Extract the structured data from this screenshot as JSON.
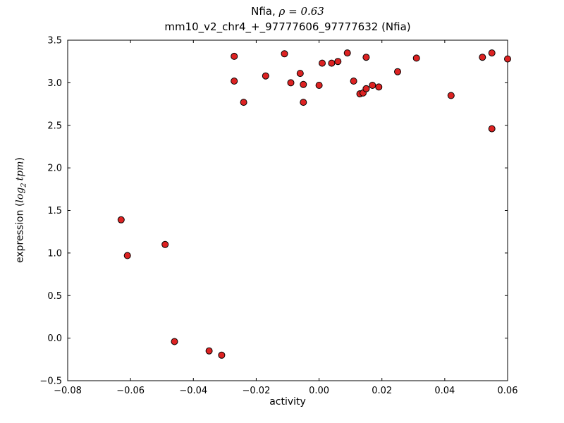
{
  "figure": {
    "title_prefix": "Nfia, ",
    "title_math": "ρ = 0.63",
    "subtitle": "mm10_v2_chr4_+_97777606_97777632 (Nfia)",
    "xlabel": "activity",
    "ylabel": {
      "prefix": "expression (",
      "math_log": "log",
      "math_sub": "2",
      "math_tpm": "tpm",
      "suffix": ")"
    }
  },
  "chart_data": {
    "type": "scatter",
    "title": "Nfia, ρ = 0.63",
    "subtitle": "mm10_v2_chr4_+_97777606_97777632 (Nfia)",
    "xlabel": "activity",
    "ylabel": "expression (log2 tpm)",
    "xlim": [
      -0.08,
      0.06
    ],
    "ylim": [
      -0.5,
      3.5
    ],
    "grid": false,
    "legend": "none",
    "xticks": [
      -0.08,
      -0.06,
      -0.04,
      -0.02,
      0.0,
      0.02,
      0.04,
      0.06
    ],
    "xtick_labels": [
      "−0.08",
      "−0.06",
      "−0.04",
      "−0.02",
      "0.00",
      "0.02",
      "0.04",
      "0.06"
    ],
    "yticks": [
      -0.5,
      0.0,
      0.5,
      1.0,
      1.5,
      2.0,
      2.5,
      3.0,
      3.5
    ],
    "ytick_labels": [
      "−0.5",
      "0.0",
      "0.5",
      "1.0",
      "1.5",
      "2.0",
      "2.5",
      "3.0",
      "3.5"
    ],
    "marker": {
      "shape": "circle",
      "color": "#dd2222",
      "edge": "#000000",
      "radius": 4.5
    },
    "points": [
      [
        -0.063,
        1.39
      ],
      [
        -0.061,
        0.97
      ],
      [
        -0.049,
        1.1
      ],
      [
        -0.046,
        -0.04
      ],
      [
        -0.035,
        -0.15
      ],
      [
        -0.031,
        -0.2
      ],
      [
        -0.027,
        3.31
      ],
      [
        -0.027,
        3.02
      ],
      [
        -0.024,
        2.77
      ],
      [
        -0.017,
        3.08
      ],
      [
        -0.011,
        3.34
      ],
      [
        -0.009,
        3.0
      ],
      [
        -0.006,
        3.11
      ],
      [
        -0.005,
        2.98
      ],
      [
        -0.005,
        2.77
      ],
      [
        0.0,
        2.97
      ],
      [
        0.001,
        3.23
      ],
      [
        0.004,
        3.23
      ],
      [
        0.006,
        3.25
      ],
      [
        0.009,
        3.35
      ],
      [
        0.011,
        3.02
      ],
      [
        0.013,
        2.87
      ],
      [
        0.014,
        2.88
      ],
      [
        0.015,
        2.93
      ],
      [
        0.015,
        3.3
      ],
      [
        0.017,
        2.97
      ],
      [
        0.019,
        2.95
      ],
      [
        0.025,
        3.13
      ],
      [
        0.031,
        3.29
      ],
      [
        0.042,
        2.85
      ],
      [
        0.052,
        3.3
      ],
      [
        0.055,
        3.35
      ],
      [
        0.055,
        2.46
      ],
      [
        0.06,
        3.28
      ]
    ]
  }
}
